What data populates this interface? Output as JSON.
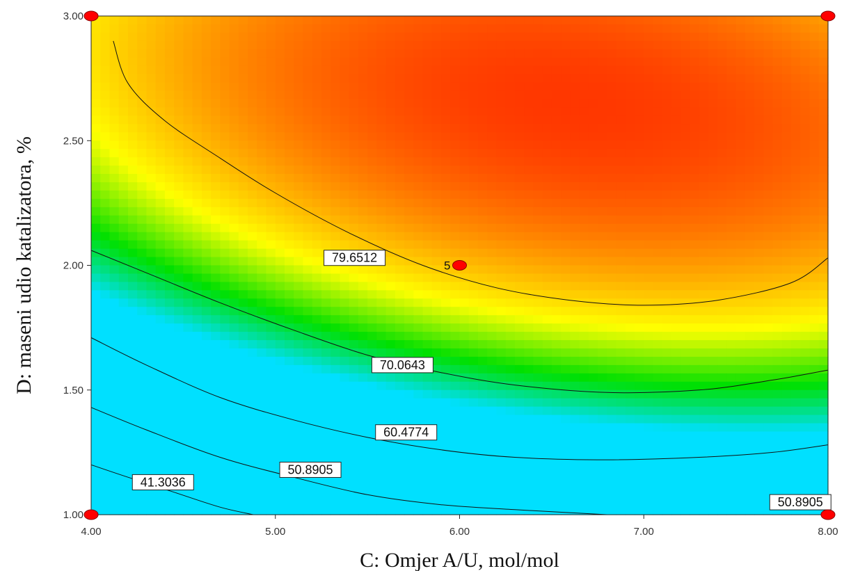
{
  "chart_data": {
    "type": "heatmap",
    "subtype": "response-surface-contour",
    "title": "",
    "xlabel": "C: Omjer A/U, mol/mol",
    "ylabel": "D: maseni udio katalizatora, %",
    "xlim": [
      4.0,
      8.0
    ],
    "ylim": [
      1.0,
      3.0
    ],
    "x_ticks": [
      "4.00",
      "5.00",
      "6.00",
      "7.00",
      "8.00"
    ],
    "y_ticks": [
      "1.00",
      "1.50",
      "2.00",
      "2.50",
      "3.00"
    ],
    "grid": false,
    "colorscale": [
      "#00e0ff",
      "#00e000",
      "#ffff00",
      "#ff8c00",
      "#ff2000"
    ],
    "z_range": [
      30,
      90
    ],
    "surface_formula": "86.8 - 3.7*(x-6.6)^2 - 6.0*(x-6.6)*(y-2.65) - 35*(y-2.65)^2",
    "contours": [
      {
        "level_label": "79.6512",
        "path": [
          [
            4.12,
            2.9
          ],
          [
            4.2,
            2.73
          ],
          [
            4.4,
            2.58
          ],
          [
            4.7,
            2.43
          ],
          [
            5.0,
            2.29
          ],
          [
            5.4,
            2.13
          ],
          [
            5.8,
            2.0
          ],
          [
            6.2,
            1.91
          ],
          [
            6.6,
            1.86
          ],
          [
            7.0,
            1.84
          ],
          [
            7.4,
            1.86
          ],
          [
            7.8,
            1.93
          ],
          [
            8.0,
            2.03
          ]
        ],
        "label_x": 5.43,
        "label_y": 2.03
      },
      {
        "level_label": "70.0643",
        "path": [
          [
            4.0,
            2.06
          ],
          [
            4.3,
            1.97
          ],
          [
            4.7,
            1.85
          ],
          [
            5.1,
            1.74
          ],
          [
            5.5,
            1.64
          ],
          [
            5.9,
            1.57
          ],
          [
            6.3,
            1.52
          ],
          [
            6.8,
            1.49
          ],
          [
            7.3,
            1.5
          ],
          [
            7.7,
            1.54
          ],
          [
            8.0,
            1.58
          ]
        ],
        "label_x": 5.69,
        "label_y": 1.6
      },
      {
        "level_label": "60.4774",
        "path": [
          [
            4.0,
            1.71
          ],
          [
            4.3,
            1.6
          ],
          [
            4.7,
            1.47
          ],
          [
            5.1,
            1.38
          ],
          [
            5.5,
            1.31
          ],
          [
            5.9,
            1.26
          ],
          [
            6.3,
            1.23
          ],
          [
            6.8,
            1.22
          ],
          [
            7.3,
            1.23
          ],
          [
            7.7,
            1.25
          ],
          [
            8.0,
            1.28
          ]
        ],
        "label_x": 5.71,
        "label_y": 1.33
      },
      {
        "level_label": "50.8905",
        "path": [
          [
            4.0,
            1.43
          ],
          [
            4.3,
            1.34
          ],
          [
            4.7,
            1.23
          ],
          [
            5.1,
            1.15
          ],
          [
            5.5,
            1.08
          ],
          [
            5.9,
            1.04
          ],
          [
            6.3,
            1.02
          ],
          [
            6.8,
            1.0
          ]
        ],
        "label_x": 5.19,
        "label_y": 1.18
      },
      {
        "level_label": "41.3036",
        "path": [
          [
            4.0,
            1.2
          ],
          [
            4.2,
            1.15
          ],
          [
            4.45,
            1.09
          ],
          [
            4.7,
            1.03
          ],
          [
            4.88,
            1.0
          ]
        ],
        "label_x": 4.39,
        "label_y": 1.13
      },
      {
        "level_label": "50.8905",
        "path": [],
        "label_x": 7.85,
        "label_y": 1.05
      }
    ],
    "design_points": [
      {
        "x": 4.0,
        "y": 1.0,
        "label": ""
      },
      {
        "x": 4.0,
        "y": 3.0,
        "label": ""
      },
      {
        "x": 8.0,
        "y": 1.0,
        "label": ""
      },
      {
        "x": 8.0,
        "y": 3.0,
        "label": ""
      },
      {
        "x": 6.0,
        "y": 2.0,
        "label": "5"
      }
    ],
    "point_color": "#ff0000"
  }
}
